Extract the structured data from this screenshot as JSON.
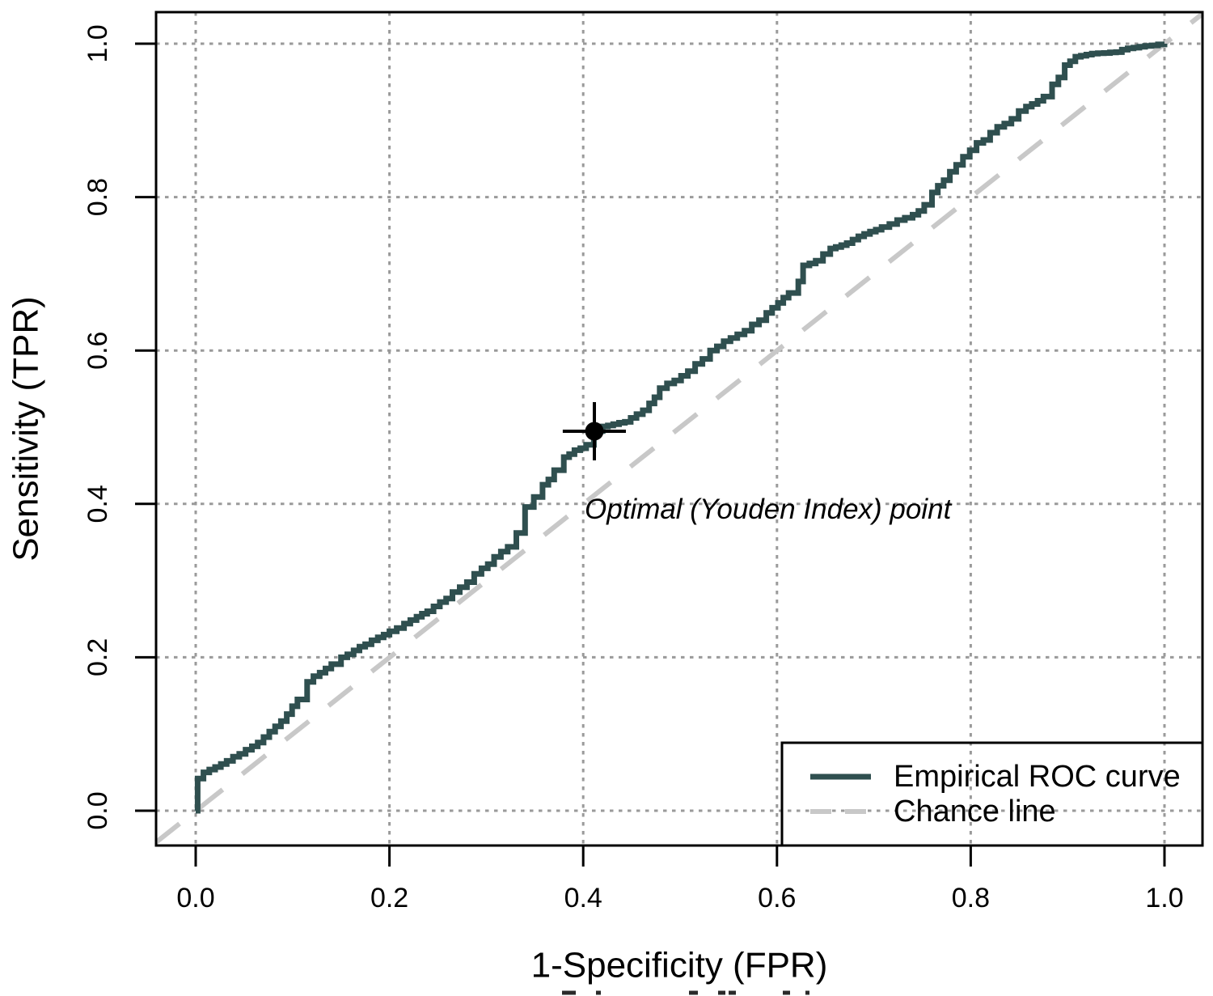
{
  "figure": {
    "background": "#ffffff",
    "border_color": "#000000",
    "grid_color": "#9a9a9a",
    "text_color": "#000000"
  },
  "chart_data": {
    "type": "line",
    "title": "",
    "xlabel": "1-Specificity (FPR)",
    "ylabel": "Sensitivity (TPR)",
    "xlim": [
      -0.04,
      1.04
    ],
    "ylim": [
      -0.045,
      1.04
    ],
    "x_ticks": {
      "values": [
        0.0,
        0.2,
        0.4,
        0.6,
        0.8,
        1.0
      ],
      "labels": [
        "0.0",
        "0.2",
        "0.4",
        "0.6",
        "0.8",
        "1.0"
      ]
    },
    "y_ticks": {
      "values": [
        0.0,
        0.2,
        0.4,
        0.6,
        0.8,
        1.0
      ],
      "labels": [
        "0.0",
        "0.2",
        "0.4",
        "0.6",
        "0.8",
        "1.0"
      ]
    },
    "grid": "dotted",
    "legend_position": "bottomright",
    "series": [
      {
        "name": "Empirical ROC curve",
        "style": "step-solid",
        "color": "#2F4F4F",
        "line_width": 7,
        "points": [
          [
            0.0,
            0.0
          ],
          [
            0.002,
            0.042
          ],
          [
            0.008,
            0.05
          ],
          [
            0.02,
            0.057
          ],
          [
            0.032,
            0.065
          ],
          [
            0.045,
            0.074
          ],
          [
            0.058,
            0.084
          ],
          [
            0.07,
            0.096
          ],
          [
            0.082,
            0.11
          ],
          [
            0.094,
            0.126
          ],
          [
            0.105,
            0.145
          ],
          [
            0.115,
            0.168
          ],
          [
            0.128,
            0.18
          ],
          [
            0.14,
            0.191
          ],
          [
            0.15,
            0.2
          ],
          [
            0.163,
            0.209
          ],
          [
            0.175,
            0.217
          ],
          [
            0.188,
            0.226
          ],
          [
            0.2,
            0.234
          ],
          [
            0.215,
            0.244
          ],
          [
            0.228,
            0.253
          ],
          [
            0.239,
            0.26
          ],
          [
            0.252,
            0.272
          ],
          [
            0.265,
            0.285
          ],
          [
            0.28,
            0.298
          ],
          [
            0.295,
            0.316
          ],
          [
            0.308,
            0.331
          ],
          [
            0.322,
            0.344
          ],
          [
            0.331,
            0.362
          ],
          [
            0.34,
            0.396
          ],
          [
            0.349,
            0.409
          ],
          [
            0.358,
            0.425
          ],
          [
            0.37,
            0.444
          ],
          [
            0.38,
            0.461
          ],
          [
            0.391,
            0.47
          ],
          [
            0.403,
            0.477
          ],
          [
            0.411,
            0.495
          ],
          [
            0.42,
            0.501
          ],
          [
            0.431,
            0.504
          ],
          [
            0.443,
            0.507
          ],
          [
            0.455,
            0.517
          ],
          [
            0.468,
            0.531
          ],
          [
            0.479,
            0.551
          ],
          [
            0.494,
            0.561
          ],
          [
            0.508,
            0.573
          ],
          [
            0.523,
            0.589
          ],
          [
            0.531,
            0.6
          ],
          [
            0.545,
            0.612
          ],
          [
            0.559,
            0.621
          ],
          [
            0.574,
            0.634
          ],
          [
            0.589,
            0.649
          ],
          [
            0.601,
            0.662
          ],
          [
            0.612,
            0.675
          ],
          [
            0.622,
            0.69
          ],
          [
            0.627,
            0.711
          ],
          [
            0.64,
            0.717
          ],
          [
            0.655,
            0.733
          ],
          [
            0.672,
            0.74
          ],
          [
            0.69,
            0.752
          ],
          [
            0.708,
            0.761
          ],
          [
            0.724,
            0.77
          ],
          [
            0.74,
            0.777
          ],
          [
            0.752,
            0.79
          ],
          [
            0.76,
            0.806
          ],
          [
            0.772,
            0.822
          ],
          [
            0.785,
            0.842
          ],
          [
            0.799,
            0.861
          ],
          [
            0.82,
            0.884
          ],
          [
            0.842,
            0.902
          ],
          [
            0.857,
            0.918
          ],
          [
            0.875,
            0.931
          ],
          [
            0.884,
            0.947
          ],
          [
            0.897,
            0.972
          ],
          [
            0.908,
            0.983
          ],
          [
            0.925,
            0.987
          ],
          [
            0.95,
            0.989
          ],
          [
            0.962,
            0.994
          ],
          [
            0.98,
            0.997
          ],
          [
            1.0,
            1.0
          ]
        ]
      },
      {
        "name": "Chance line",
        "style": "dashed",
        "color": "#C8C8C8",
        "line_width": 6,
        "points": [
          [
            0.0,
            0.0
          ],
          [
            1.0,
            1.0
          ]
        ]
      }
    ],
    "optimal_point": {
      "label": "Optimal (Youden Index) point",
      "x": 0.4115,
      "y": 0.4947,
      "xerr": 0.0326,
      "yerr": 0.038,
      "marker_color": "#000000"
    }
  }
}
